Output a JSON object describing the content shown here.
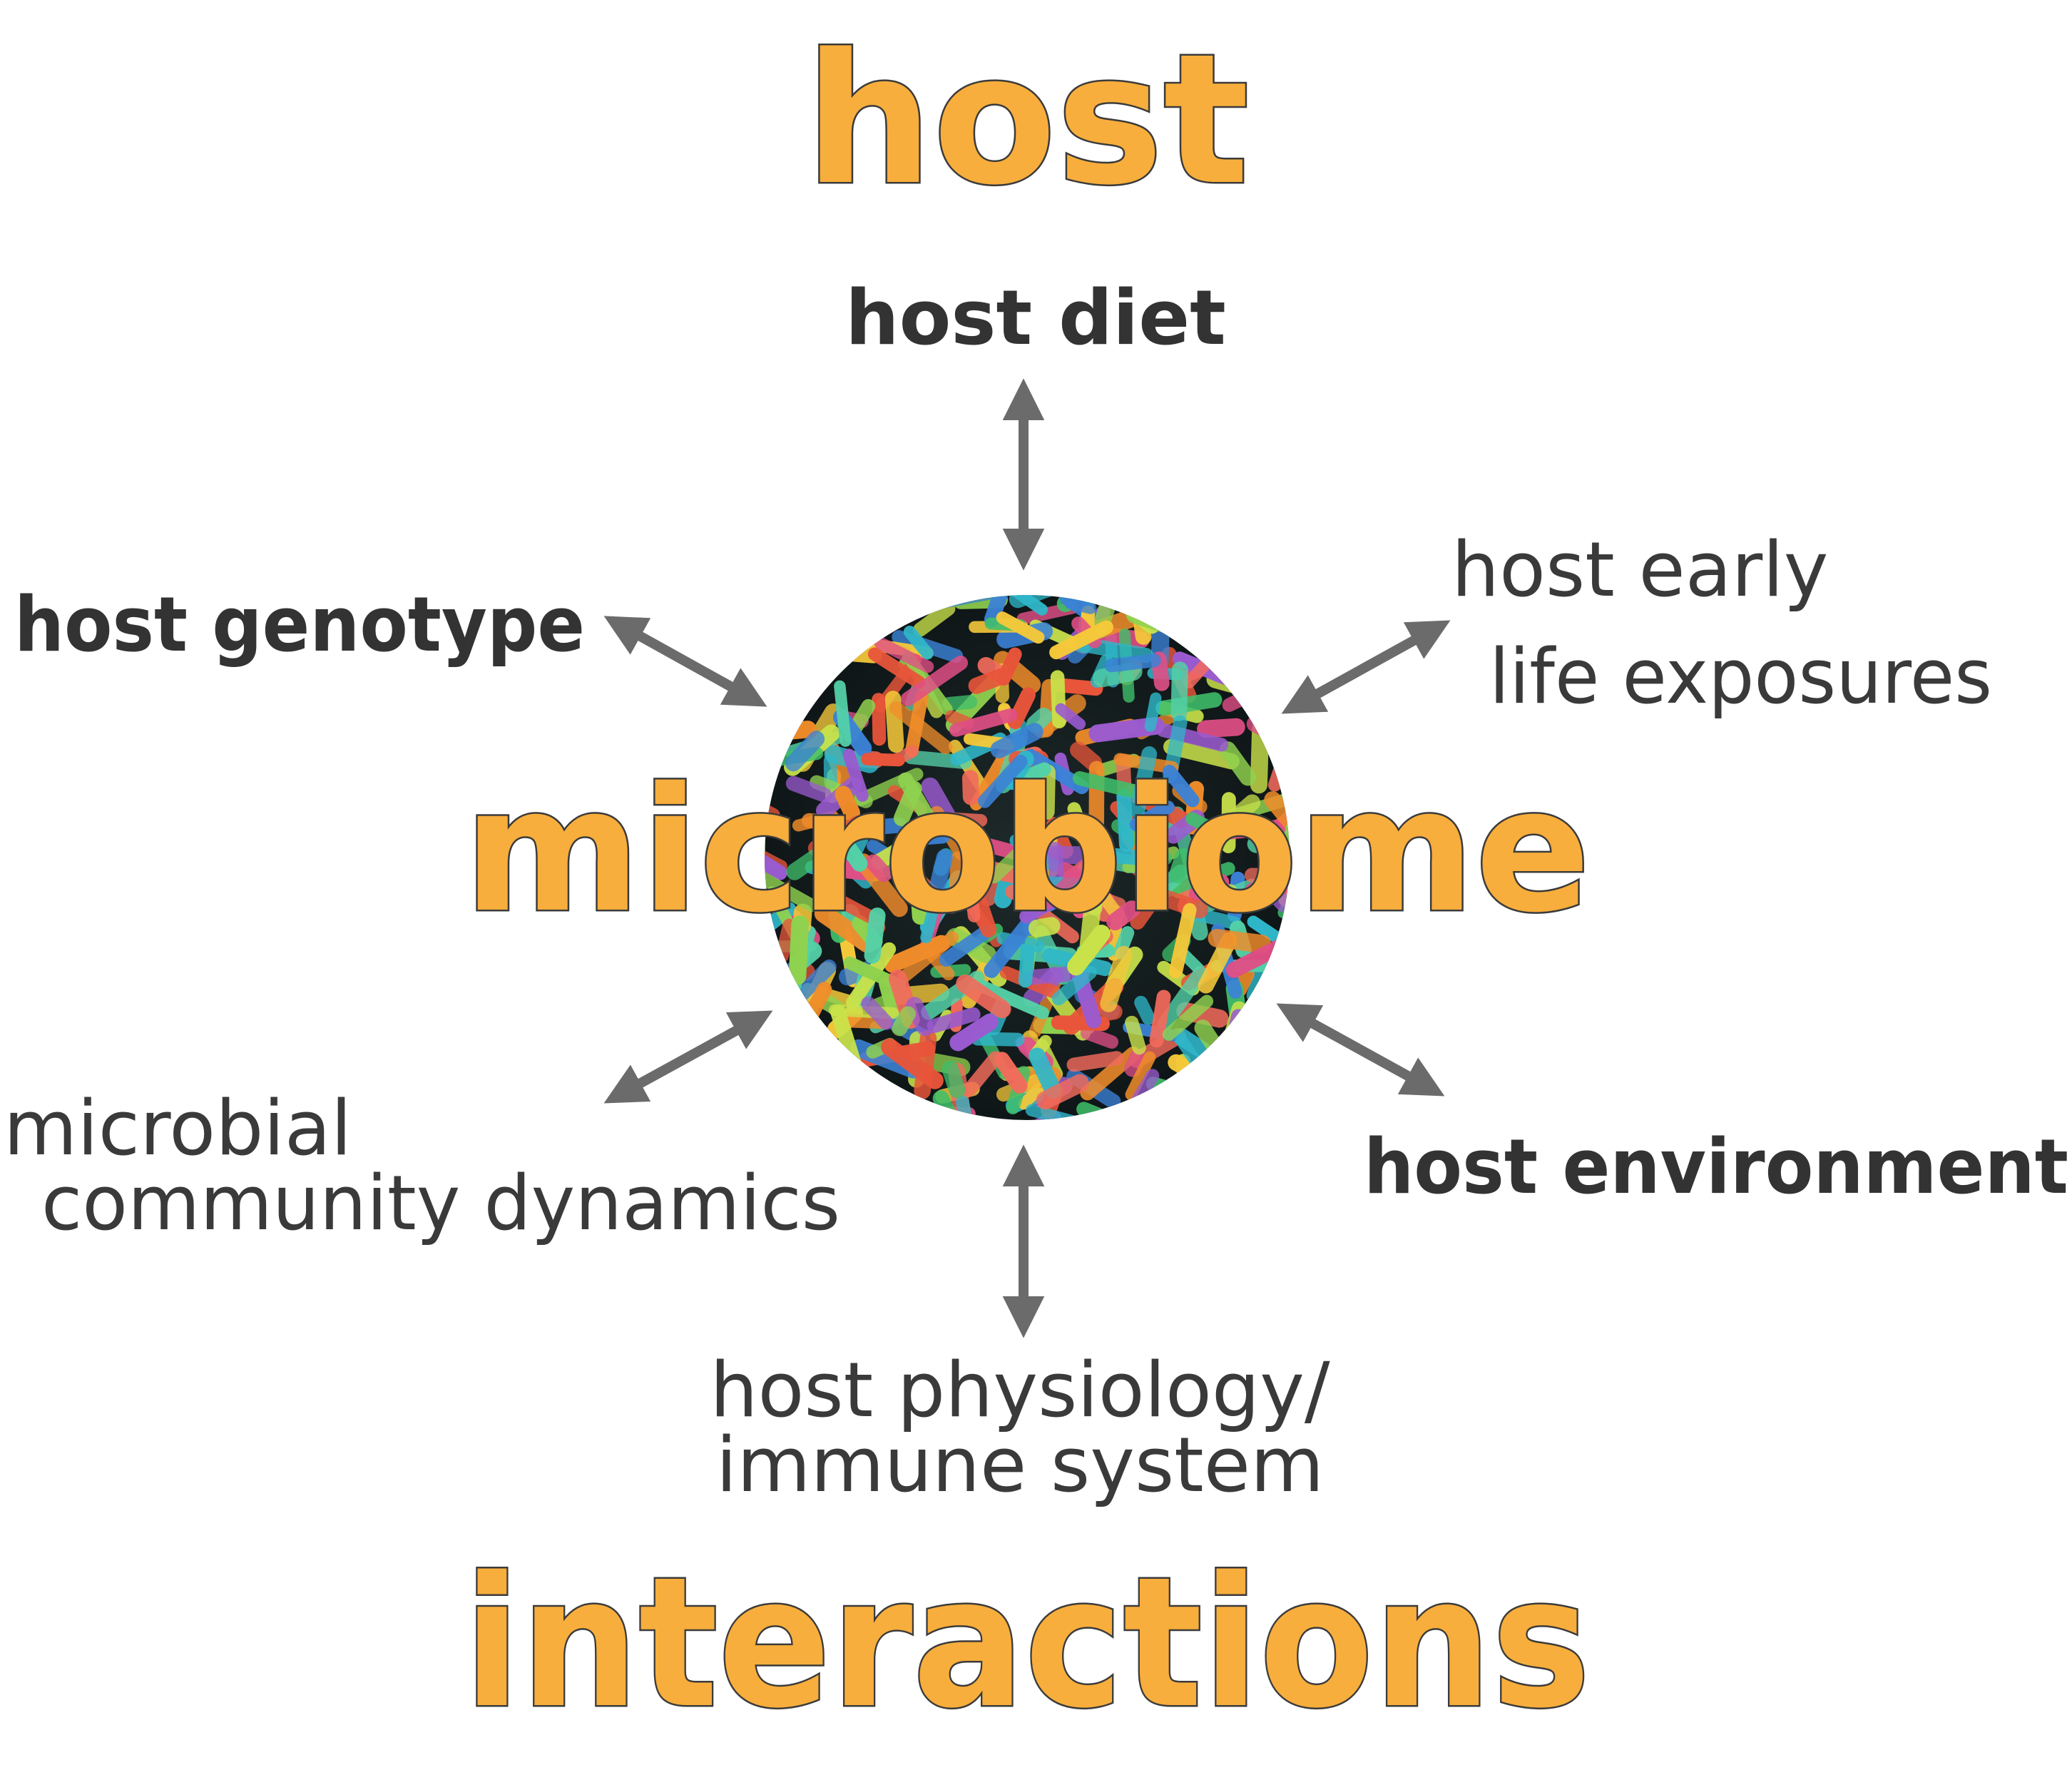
{
  "title": {
    "top": "host",
    "center": "microbiome",
    "bottom": "interactions"
  },
  "factors": {
    "diet": "host diet",
    "genotype": "host genotype",
    "early_life_line1": "host early",
    "early_life_line2": "life exposures",
    "microbial_line1": "microbial",
    "microbial_line2": "community dynamics",
    "environment": "host environment",
    "physiology_line1": "host physiology/",
    "physiology_line2": "immune system"
  },
  "colors": {
    "accent_orange": "#f8ae3c",
    "outline_dark": "#3b3b3b",
    "arrow_gray": "#6b6b6b",
    "label_text": "#333333"
  },
  "arrow_style": "double-headed"
}
